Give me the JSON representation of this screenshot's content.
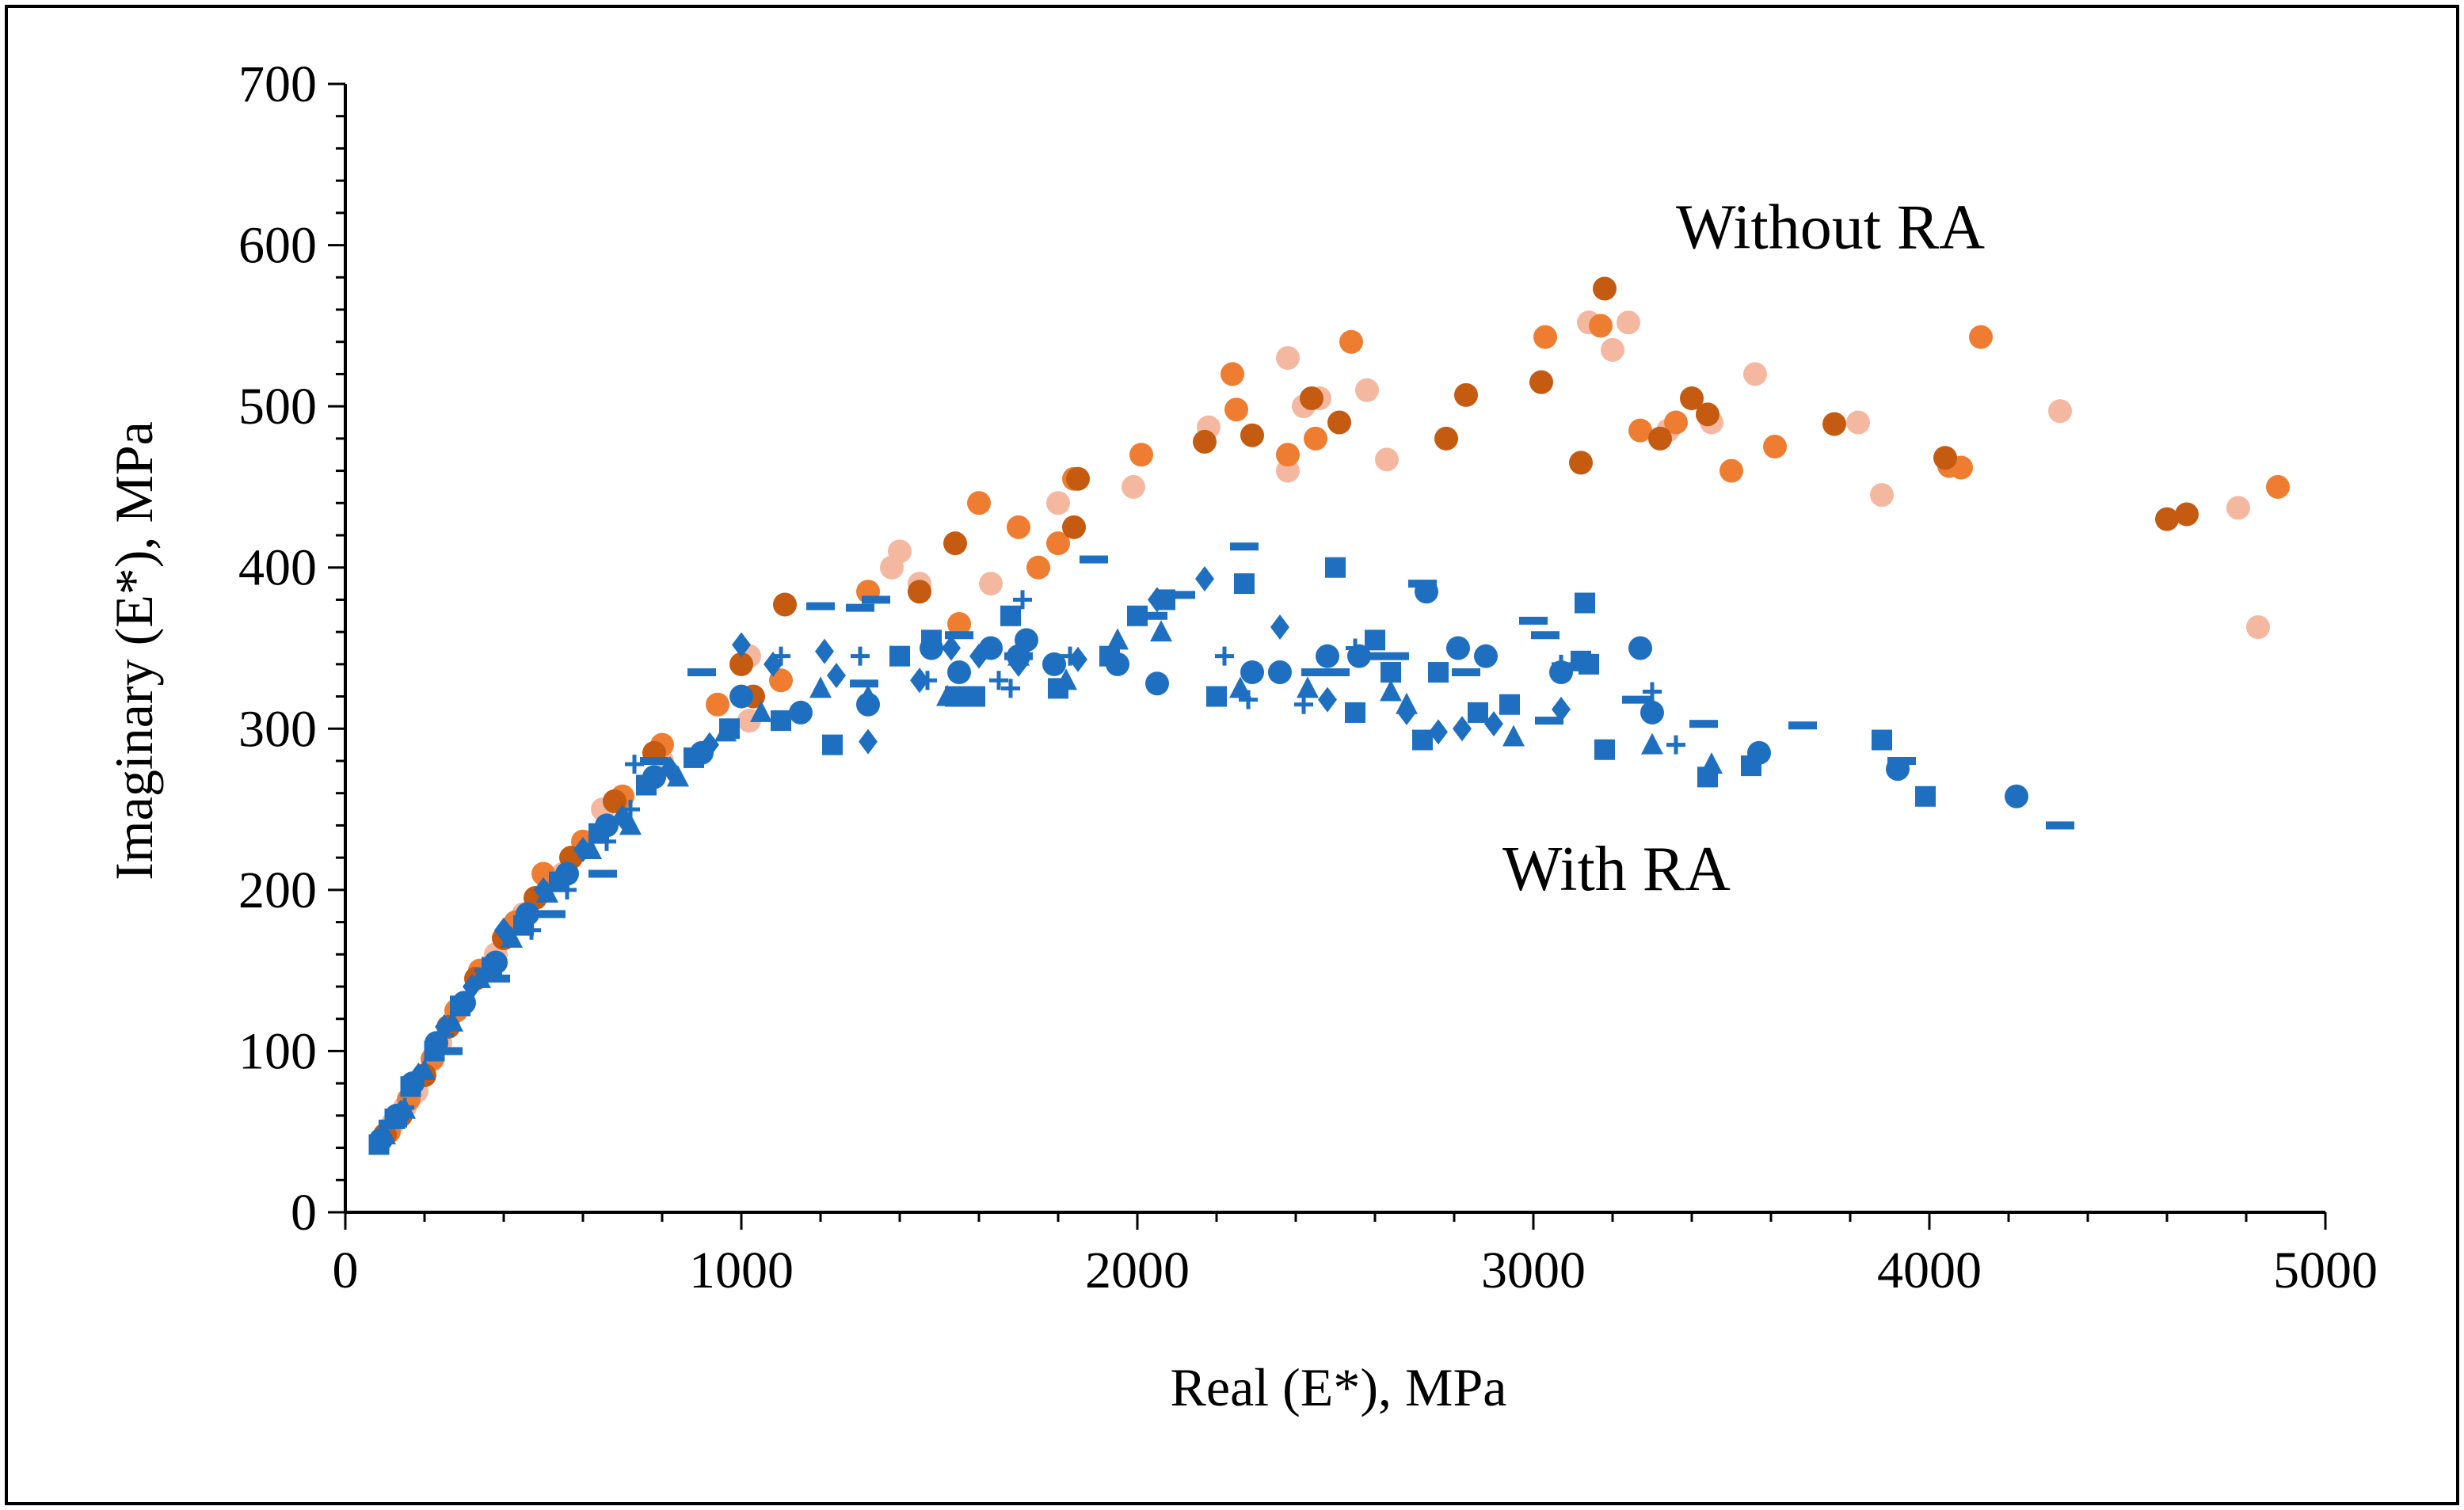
{
  "chart_data": {
    "type": "scatter",
    "title": "",
    "xlabel": "Real (E*), MPa",
    "ylabel": "Imaginary (E*), MPa",
    "xlim": [
      0,
      5000
    ],
    "ylim": [
      0,
      700
    ],
    "x_ticks": [
      "0",
      "1000",
      "2000",
      "3000",
      "4000",
      "5000"
    ],
    "y_ticks": [
      "0",
      "100",
      "200",
      "300",
      "400",
      "500",
      "600",
      "700"
    ],
    "x_tick_values": [
      0,
      1000,
      2000,
      3000,
      4000,
      5000
    ],
    "y_tick_values": [
      0,
      100,
      200,
      300,
      400,
      500,
      600,
      700
    ],
    "x_minor_step": 200,
    "y_minor_step": 20,
    "grid": false,
    "legend": "none",
    "annotations": [
      {
        "text": "Without RA",
        "x": 3750,
        "y": 598
      },
      {
        "text": "With RA",
        "x": 3210,
        "y": 200
      }
    ],
    "series": [
      {
        "name": "Without RA - light orange",
        "marker": "circle",
        "color": "#f4b8a1",
        "points": [
          [
            120,
            55
          ],
          [
            150,
            65
          ],
          [
            180,
            75
          ],
          [
            240,
            105
          ],
          [
            300,
            130
          ],
          [
            380,
            160
          ],
          [
            450,
            185
          ],
          [
            550,
            210
          ],
          [
            650,
            250
          ],
          [
            800,
            280
          ],
          [
            1020,
            345
          ],
          [
            1020,
            305
          ],
          [
            1380,
            400
          ],
          [
            1400,
            410
          ],
          [
            1450,
            390
          ],
          [
            1630,
            390
          ],
          [
            1800,
            440
          ],
          [
            1990,
            450
          ],
          [
            2180,
            487
          ],
          [
            2380,
            460
          ],
          [
            2380,
            530
          ],
          [
            2420,
            500
          ],
          [
            2460,
            505
          ],
          [
            2580,
            510
          ],
          [
            2630,
            467
          ],
          [
            3140,
            552
          ],
          [
            3200,
            535
          ],
          [
            3240,
            552
          ],
          [
            3340,
            485
          ],
          [
            3450,
            490
          ],
          [
            3560,
            520
          ],
          [
            3820,
            490
          ],
          [
            3880,
            445
          ],
          [
            4330,
            497
          ],
          [
            4780,
            437
          ],
          [
            4830,
            363
          ]
        ]
      },
      {
        "name": "Without RA - orange",
        "marker": "circle",
        "color": "#ee7d31",
        "points": [
          [
            110,
            50
          ],
          [
            160,
            70
          ],
          [
            220,
            95
          ],
          [
            280,
            125
          ],
          [
            340,
            150
          ],
          [
            430,
            180
          ],
          [
            500,
            210
          ],
          [
            600,
            230
          ],
          [
            700,
            258
          ],
          [
            800,
            290
          ],
          [
            940,
            315
          ],
          [
            1100,
            330
          ],
          [
            1320,
            385
          ],
          [
            1550,
            365
          ],
          [
            1600,
            440
          ],
          [
            1700,
            425
          ],
          [
            1750,
            400
          ],
          [
            1800,
            415
          ],
          [
            1840,
            455
          ],
          [
            2010,
            470
          ],
          [
            2240,
            520
          ],
          [
            2250,
            498
          ],
          [
            2380,
            470
          ],
          [
            2450,
            480
          ],
          [
            2540,
            540
          ],
          [
            3030,
            543
          ],
          [
            3170,
            550
          ],
          [
            3270,
            485
          ],
          [
            3360,
            490
          ],
          [
            3500,
            460
          ],
          [
            3610,
            475
          ],
          [
            4050,
            463
          ],
          [
            4080,
            462
          ],
          [
            4130,
            543
          ],
          [
            4880,
            450
          ]
        ]
      },
      {
        "name": "Without RA - dark orange",
        "marker": "circle",
        "color": "#c55a11",
        "points": [
          [
            100,
            48
          ],
          [
            140,
            60
          ],
          [
            200,
            85
          ],
          [
            260,
            115
          ],
          [
            330,
            145
          ],
          [
            400,
            170
          ],
          [
            480,
            195
          ],
          [
            570,
            220
          ],
          [
            680,
            255
          ],
          [
            780,
            285
          ],
          [
            1000,
            340
          ],
          [
            1030,
            320
          ],
          [
            1110,
            377
          ],
          [
            1450,
            385
          ],
          [
            1540,
            415
          ],
          [
            1840,
            425
          ],
          [
            1850,
            455
          ],
          [
            2170,
            478
          ],
          [
            2290,
            482
          ],
          [
            2440,
            505
          ],
          [
            2510,
            490
          ],
          [
            2830,
            507
          ],
          [
            2780,
            480
          ],
          [
            3020,
            515
          ],
          [
            3120,
            465
          ],
          [
            3180,
            573
          ],
          [
            3320,
            480
          ],
          [
            3400,
            505
          ],
          [
            3440,
            495
          ],
          [
            3760,
            489
          ],
          [
            4040,
            468
          ],
          [
            4600,
            430
          ],
          [
            4650,
            433
          ]
        ]
      },
      {
        "name": "With RA - circle",
        "marker": "circle",
        "color": "#1f6fc0",
        "points": [
          [
            90,
            45
          ],
          [
            130,
            60
          ],
          [
            170,
            80
          ],
          [
            230,
            105
          ],
          [
            300,
            130
          ],
          [
            380,
            155
          ],
          [
            460,
            185
          ],
          [
            560,
            210
          ],
          [
            660,
            240
          ],
          [
            780,
            270
          ],
          [
            900,
            285
          ],
          [
            1000,
            320
          ],
          [
            1150,
            310
          ],
          [
            1320,
            315
          ],
          [
            1480,
            350
          ],
          [
            1550,
            335
          ],
          [
            1630,
            350
          ],
          [
            1700,
            345
          ],
          [
            1720,
            355
          ],
          [
            1790,
            340
          ],
          [
            1950,
            340
          ],
          [
            2050,
            328
          ],
          [
            2290,
            335
          ],
          [
            2360,
            335
          ],
          [
            2480,
            345
          ],
          [
            2560,
            345
          ],
          [
            2730,
            385
          ],
          [
            2810,
            350
          ],
          [
            2880,
            345
          ],
          [
            3070,
            335
          ],
          [
            3270,
            350
          ],
          [
            3300,
            310
          ],
          [
            3570,
            285
          ],
          [
            3920,
            275
          ],
          [
            4220,
            258
          ]
        ]
      },
      {
        "name": "With RA - square",
        "marker": "square",
        "color": "#1f6fc0",
        "points": [
          [
            85,
            42
          ],
          [
            125,
            58
          ],
          [
            165,
            78
          ],
          [
            225,
            100
          ],
          [
            290,
            128
          ],
          [
            370,
            152
          ],
          [
            450,
            178
          ],
          [
            540,
            205
          ],
          [
            640,
            235
          ],
          [
            760,
            265
          ],
          [
            880,
            282
          ],
          [
            970,
            300
          ],
          [
            1100,
            305
          ],
          [
            1230,
            290
          ],
          [
            1400,
            345
          ],
          [
            1480,
            355
          ],
          [
            1540,
            320
          ],
          [
            1590,
            320
          ],
          [
            1680,
            370
          ],
          [
            1800,
            325
          ],
          [
            1930,
            345
          ],
          [
            2000,
            370
          ],
          [
            2070,
            380
          ],
          [
            2200,
            320
          ],
          [
            2270,
            390
          ],
          [
            2500,
            400
          ],
          [
            2550,
            310
          ],
          [
            2600,
            355
          ],
          [
            2640,
            335
          ],
          [
            2720,
            293
          ],
          [
            2760,
            335
          ],
          [
            2860,
            310
          ],
          [
            2940,
            315
          ],
          [
            3140,
            340
          ],
          [
            3120,
            342
          ],
          [
            3130,
            378
          ],
          [
            3180,
            287
          ],
          [
            3440,
            270
          ],
          [
            3550,
            277
          ],
          [
            3880,
            293
          ],
          [
            3990,
            258
          ]
        ]
      },
      {
        "name": "With RA - diamond",
        "marker": "diamond",
        "color": "#1f6fc0",
        "points": [
          [
            95,
            46
          ],
          [
            140,
            62
          ],
          [
            185,
            85
          ],
          [
            250,
            115
          ],
          [
            320,
            140
          ],
          [
            400,
            175
          ],
          [
            500,
            200
          ],
          [
            600,
            225
          ],
          [
            700,
            245
          ],
          [
            820,
            275
          ],
          [
            920,
            290
          ],
          [
            1000,
            352
          ],
          [
            1080,
            340
          ],
          [
            1210,
            348
          ],
          [
            1240,
            333
          ],
          [
            1320,
            292
          ],
          [
            1450,
            330
          ],
          [
            1530,
            350
          ],
          [
            1600,
            345
          ],
          [
            1700,
            340
          ],
          [
            1850,
            343
          ],
          [
            2050,
            380
          ],
          [
            2170,
            393
          ],
          [
            2360,
            363
          ],
          [
            2480,
            318
          ],
          [
            2680,
            310
          ],
          [
            2760,
            298
          ],
          [
            2820,
            300
          ],
          [
            2900,
            303
          ],
          [
            3070,
            312
          ]
        ]
      },
      {
        "name": "With RA - triangle",
        "marker": "triangle",
        "color": "#1f6fc0",
        "points": [
          [
            100,
            48
          ],
          [
            150,
            64
          ],
          [
            200,
            88
          ],
          [
            270,
            118
          ],
          [
            340,
            145
          ],
          [
            420,
            170
          ],
          [
            510,
            198
          ],
          [
            620,
            225
          ],
          [
            720,
            240
          ],
          [
            840,
            270
          ],
          [
            960,
            298
          ],
          [
            1050,
            310
          ],
          [
            1200,
            325
          ],
          [
            1320,
            320
          ],
          [
            1520,
            320
          ],
          [
            1700,
            345
          ],
          [
            1820,
            330
          ],
          [
            1950,
            355
          ],
          [
            2060,
            360
          ],
          [
            2260,
            325
          ],
          [
            2430,
            325
          ],
          [
            2640,
            323
          ],
          [
            2680,
            315
          ],
          [
            2950,
            295
          ],
          [
            3300,
            290
          ],
          [
            3450,
            278
          ]
        ]
      },
      {
        "name": "With RA - dash",
        "marker": "dash",
        "color": "#1f6fc0",
        "points": [
          [
            120,
            55
          ],
          [
            260,
            100
          ],
          [
            380,
            145
          ],
          [
            520,
            185
          ],
          [
            650,
            210
          ],
          [
            780,
            280
          ],
          [
            900,
            335
          ],
          [
            1200,
            376
          ],
          [
            1300,
            375
          ],
          [
            1310,
            328
          ],
          [
            1340,
            380
          ],
          [
            1550,
            358
          ],
          [
            1700,
            345
          ],
          [
            1890,
            405
          ],
          [
            2040,
            370
          ],
          [
            2110,
            383
          ],
          [
            2270,
            413
          ],
          [
            2450,
            335
          ],
          [
            2500,
            335
          ],
          [
            2580,
            345
          ],
          [
            2650,
            345
          ],
          [
            2720,
            390
          ],
          [
            2830,
            335
          ],
          [
            3000,
            367
          ],
          [
            3030,
            358
          ],
          [
            3040,
            305
          ],
          [
            3260,
            318
          ],
          [
            3430,
            303
          ],
          [
            3680,
            302
          ],
          [
            3930,
            280
          ],
          [
            4330,
            240
          ]
        ]
      },
      {
        "name": "With RA - plus",
        "marker": "plus",
        "color": "#1f6fc0",
        "points": [
          [
            150,
            65
          ],
          [
            250,
            110
          ],
          [
            350,
            150
          ],
          [
            470,
            175
          ],
          [
            560,
            200
          ],
          [
            660,
            230
          ],
          [
            720,
            250
          ],
          [
            730,
            278
          ],
          [
            1000,
            320
          ],
          [
            1100,
            345
          ],
          [
            1300,
            345
          ],
          [
            1470,
            330
          ],
          [
            1650,
            330
          ],
          [
            1680,
            325
          ],
          [
            1710,
            380
          ],
          [
            1830,
            345
          ],
          [
            2220,
            345
          ],
          [
            2280,
            318
          ],
          [
            2420,
            315
          ],
          [
            2550,
            350
          ],
          [
            3070,
            340
          ],
          [
            3300,
            323
          ],
          [
            3360,
            290
          ]
        ]
      }
    ]
  }
}
